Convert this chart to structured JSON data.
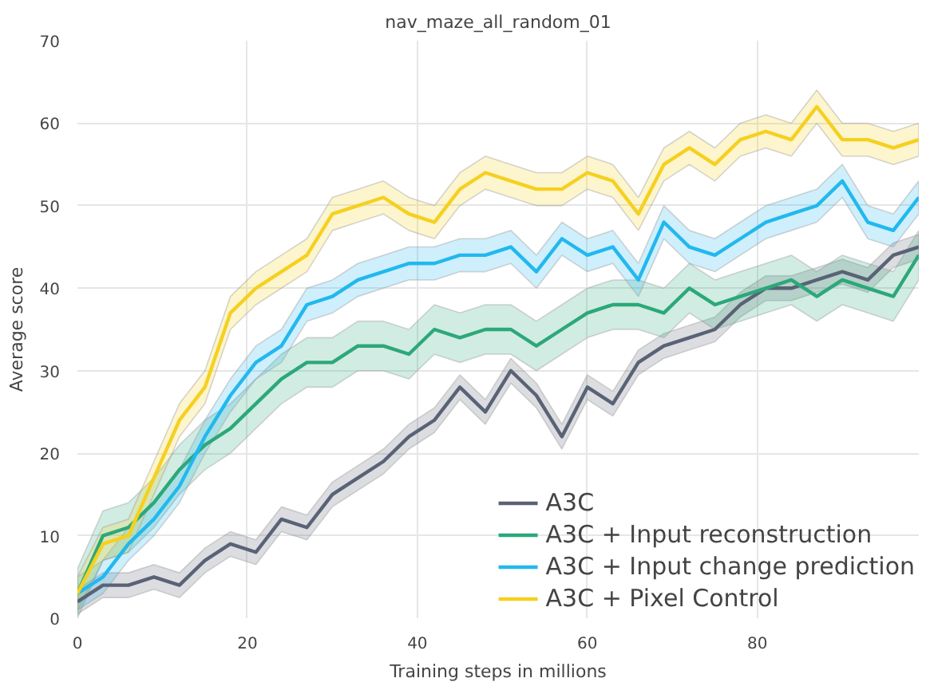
{
  "chart_data": {
    "type": "line",
    "title": "nav_maze_all_random_01",
    "xlabel": "Training steps in millions",
    "ylabel": "Average score",
    "x": [
      0,
      3,
      6,
      9,
      12,
      15,
      18,
      21,
      24,
      27,
      30,
      33,
      36,
      39,
      42,
      45,
      48,
      51,
      54,
      57,
      60,
      63,
      66,
      69,
      72,
      75,
      78,
      81,
      84,
      87,
      90,
      93,
      96,
      99
    ],
    "xlim": [
      0,
      99
    ],
    "xticks": [
      0,
      20,
      40,
      60,
      80
    ],
    "ylim": [
      0,
      70
    ],
    "yticks": [
      0,
      10,
      20,
      30,
      40,
      50,
      60,
      70
    ],
    "grid": true,
    "legend": "bottom right",
    "series": [
      {
        "name": "A3C",
        "color": "#5a6275",
        "values": [
          2,
          4,
          4,
          5,
          4,
          7,
          9,
          8,
          12,
          11,
          15,
          17,
          19,
          22,
          24,
          28,
          25,
          30,
          27,
          22,
          28,
          26,
          31,
          33,
          34,
          35,
          38,
          40,
          40,
          41,
          42,
          41,
          44,
          45
        ],
        "lower": [
          0.5,
          2.5,
          2.5,
          3.5,
          2.5,
          5.5,
          7.5,
          6.5,
          10.5,
          9.5,
          13.5,
          15.5,
          17.5,
          20.5,
          22.5,
          26.5,
          23.5,
          28.5,
          25.5,
          20.5,
          26.5,
          24.5,
          29.5,
          31.5,
          32.5,
          33.5,
          36.5,
          38.5,
          38.5,
          39.5,
          40.5,
          39.5,
          42.5,
          43.5
        ],
        "upper": [
          3.5,
          5.5,
          5.5,
          6.5,
          5.5,
          8.5,
          10.5,
          9.5,
          13.5,
          12.5,
          16.5,
          18.5,
          20.5,
          23.5,
          25.5,
          29.5,
          26.5,
          31.5,
          28.5,
          23.5,
          29.5,
          27.5,
          32.5,
          34.5,
          35.5,
          36.5,
          39.5,
          41.5,
          41.5,
          42.5,
          43.5,
          42.5,
          45.5,
          46.5
        ]
      },
      {
        "name": "A3C + Input reconstruction",
        "color": "#2ca87a",
        "values": [
          3,
          10,
          11,
          14,
          18,
          21,
          23,
          26,
          29,
          31,
          31,
          33,
          33,
          32,
          35,
          34,
          35,
          35,
          33,
          35,
          37,
          38,
          38,
          37,
          40,
          38,
          39,
          40,
          41,
          39,
          41,
          40,
          39,
          44
        ],
        "lower": [
          0,
          7,
          8,
          11,
          15,
          18,
          20,
          23,
          26,
          28,
          28,
          30,
          30,
          29,
          32,
          31,
          32,
          32,
          30,
          32,
          34,
          35,
          35,
          34,
          37,
          35,
          36,
          37,
          38,
          36,
          38,
          37,
          36,
          41
        ],
        "upper": [
          6,
          13,
          14,
          17,
          21,
          24,
          26,
          29,
          32,
          34,
          34,
          36,
          36,
          35,
          38,
          37,
          38,
          38,
          36,
          38,
          40,
          41,
          41,
          40,
          43,
          41,
          42,
          43,
          44,
          42,
          44,
          43,
          42,
          47
        ]
      },
      {
        "name": "A3C + Input change prediction",
        "color": "#22b8ee",
        "values": [
          3,
          5,
          9,
          12,
          16,
          22,
          27,
          31,
          33,
          38,
          39,
          41,
          42,
          43,
          43,
          44,
          44,
          45,
          42,
          46,
          44,
          45,
          41,
          48,
          45,
          44,
          46,
          48,
          49,
          50,
          53,
          48,
          47,
          51
        ],
        "lower": [
          1,
          3,
          7,
          10,
          14,
          20,
          25,
          29,
          31,
          36,
          37,
          39,
          40,
          41,
          41,
          42,
          42,
          43,
          40,
          44,
          42,
          43,
          39,
          46,
          43,
          42,
          44,
          46,
          47,
          48,
          51,
          46,
          45,
          49
        ],
        "upper": [
          5,
          7,
          11,
          14,
          18,
          24,
          29,
          33,
          35,
          40,
          41,
          43,
          44,
          45,
          45,
          46,
          46,
          47,
          44,
          48,
          46,
          47,
          43,
          50,
          47,
          46,
          48,
          50,
          51,
          52,
          55,
          50,
          49,
          53
        ]
      },
      {
        "name": "A3C + Pixel Control",
        "color": "#f5d020",
        "values": [
          3,
          9,
          10,
          17,
          24,
          28,
          37,
          40,
          42,
          44,
          49,
          50,
          51,
          49,
          48,
          52,
          54,
          53,
          52,
          52,
          54,
          53,
          49,
          55,
          57,
          55,
          58,
          59,
          58,
          62,
          58,
          58,
          57,
          58
        ],
        "lower": [
          1,
          7,
          8,
          15,
          22,
          26,
          35,
          38,
          40,
          42,
          47,
          48,
          49,
          47,
          46,
          50,
          52,
          51,
          50,
          50,
          52,
          51,
          47,
          53,
          55,
          53,
          56,
          57,
          56,
          60,
          56,
          56,
          55,
          56
        ],
        "upper": [
          5,
          11,
          12,
          19,
          26,
          30,
          39,
          42,
          44,
          46,
          51,
          52,
          53,
          51,
          50,
          54,
          56,
          55,
          54,
          54,
          56,
          55,
          51,
          57,
          59,
          57,
          60,
          61,
          60,
          64,
          60,
          60,
          59,
          60
        ]
      }
    ]
  }
}
